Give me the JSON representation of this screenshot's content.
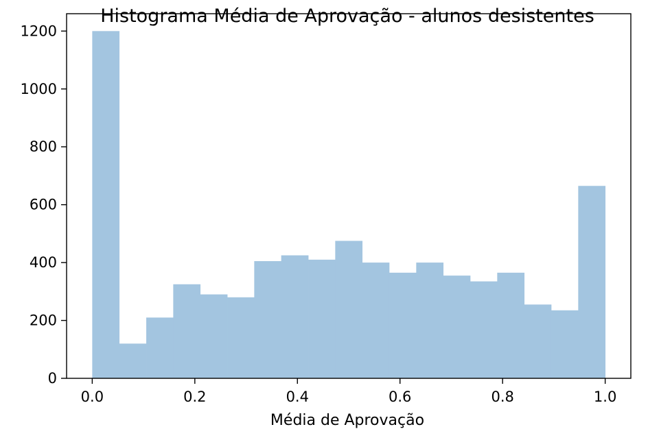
{
  "chart_data": {
    "type": "bar",
    "title": "Histograma Média de Aprovação - alunos desistentes",
    "xlabel": "Média de Aprovação",
    "ylabel": "",
    "xlim": [
      -0.05,
      1.05
    ],
    "ylim": [
      0,
      1260
    ],
    "x_ticks": [
      "0.0",
      "0.2",
      "0.4",
      "0.6",
      "0.8",
      "1.0"
    ],
    "x_tick_values": [
      0.0,
      0.2,
      0.4,
      0.6,
      0.8,
      1.0
    ],
    "y_ticks": [
      "0",
      "200",
      "400",
      "600",
      "800",
      "1000",
      "1200"
    ],
    "y_tick_values": [
      0,
      200,
      400,
      600,
      800,
      1000,
      1200
    ],
    "bin_edges": [
      0.0,
      0.0526,
      0.1053,
      0.1579,
      0.2105,
      0.2632,
      0.3158,
      0.3684,
      0.4211,
      0.4737,
      0.5263,
      0.5789,
      0.6316,
      0.6842,
      0.7368,
      0.7895,
      0.8421,
      0.8947,
      0.9474,
      1.0
    ],
    "values": [
      1200,
      120,
      210,
      325,
      290,
      280,
      405,
      425,
      410,
      475,
      400,
      365,
      400,
      355,
      335,
      365,
      255,
      235,
      665
    ],
    "bar_color": "#a3c5e0",
    "grid": false,
    "legend": "none"
  }
}
